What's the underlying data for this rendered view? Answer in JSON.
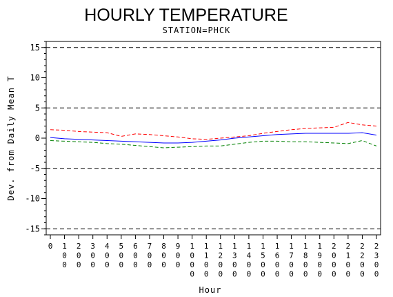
{
  "chart_data": {
    "type": "line",
    "title": "HOURLY TEMPERATURE",
    "subtitle": "STATION=PHCK",
    "xlabel": "Hour",
    "ylabel": "Dev. from Daily Mean T",
    "ylim": [
      -16,
      16
    ],
    "yticks": [
      -15,
      -10,
      -5,
      0,
      5,
      10,
      15
    ],
    "reference_lines": [
      -15,
      -5,
      5,
      15
    ],
    "x": [
      "0",
      "100",
      "200",
      "300",
      "400",
      "500",
      "600",
      "700",
      "800",
      "900",
      "1000",
      "1100",
      "1200",
      "1300",
      "1400",
      "1500",
      "1600",
      "1700",
      "1800",
      "1900",
      "2000",
      "2100",
      "2200",
      "2300"
    ],
    "series": [
      {
        "color": "#ff0000",
        "dash": "dashed",
        "values": [
          1.4,
          1.3,
          1.1,
          1.0,
          0.9,
          0.3,
          0.7,
          0.6,
          0.4,
          0.2,
          -0.1,
          -0.2,
          0.0,
          0.2,
          0.4,
          0.8,
          1.1,
          1.4,
          1.6,
          1.7,
          1.8,
          2.6,
          2.2,
          2.0
        ]
      },
      {
        "color": "#0000ff",
        "dash": "solid",
        "values": [
          0.1,
          -0.1,
          -0.2,
          -0.3,
          -0.4,
          -0.5,
          -0.6,
          -0.7,
          -0.8,
          -0.8,
          -0.7,
          -0.5,
          -0.3,
          0.0,
          0.2,
          0.4,
          0.6,
          0.7,
          0.8,
          0.8,
          0.8,
          0.8,
          0.9,
          0.5
        ]
      },
      {
        "color": "#008000",
        "dash": "dashed",
        "values": [
          -0.4,
          -0.5,
          -0.6,
          -0.7,
          -0.9,
          -1.0,
          -1.2,
          -1.4,
          -1.6,
          -1.5,
          -1.4,
          -1.3,
          -1.3,
          -1.0,
          -0.7,
          -0.5,
          -0.5,
          -0.6,
          -0.6,
          -0.7,
          -0.8,
          -0.9,
          -0.4,
          -1.3
        ]
      }
    ]
  }
}
